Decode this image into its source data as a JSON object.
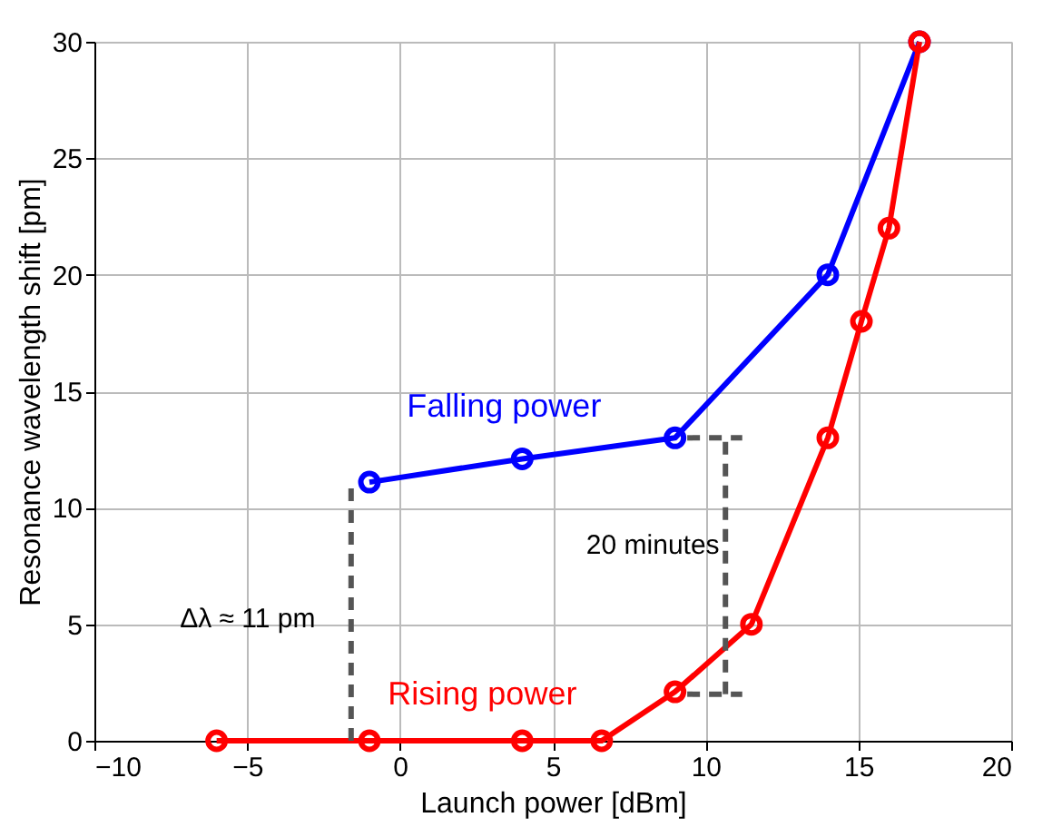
{
  "chart_data": {
    "type": "line",
    "xlabel": "Launch power  [dBm]",
    "ylabel": "Resonance wavelength shift  [pm]",
    "xlim": [
      -10,
      20
    ],
    "xticks": [
      -10,
      -5,
      0,
      5,
      10,
      15,
      20
    ],
    "ylim": [
      0,
      30
    ],
    "yticks": [
      0,
      5,
      10,
      15,
      20,
      25,
      30
    ],
    "grid": true,
    "marker": "circle",
    "line_style": "solid",
    "series": [
      {
        "name": "Falling power",
        "color": "#0000ff",
        "x": [
          -1.0,
          4.0,
          9.0,
          14.0,
          17.0
        ],
        "values": [
          11.1,
          12.1,
          13.0,
          20.0,
          30.0
        ]
      },
      {
        "name": "Rising power",
        "color": "#ff0000",
        "x": [
          -6.0,
          -1.0,
          4.0,
          6.6,
          9.0,
          11.5,
          14.0,
          15.1,
          16.0,
          17.0
        ],
        "values": [
          0,
          0,
          0,
          0,
          2.1,
          5.0,
          13.0,
          18.0,
          22.0,
          30.0
        ]
      },
      {
        "type": "line",
        "color": "#555555",
        "line_style": "dashed",
        "marker": "none",
        "x": [
          -1.6,
          -1.6
        ],
        "values": [
          0,
          11
        ]
      },
      {
        "type": "line",
        "color": "#555555",
        "line_style": "dashed",
        "marker": "none",
        "x": [
          10.65,
          10.65
        ],
        "values": [
          2,
          13
        ]
      },
      {
        "type": "line",
        "color": "#555555",
        "line_style": "dashed",
        "marker": "none",
        "x": [
          9.4,
          11.2
        ],
        "values": [
          13,
          13
        ]
      },
      {
        "type": "line",
        "color": "#555555",
        "line_style": "dashed",
        "marker": "none",
        "x": [
          9.4,
          11.2
        ],
        "values": [
          2,
          2
        ]
      }
    ],
    "annotations": [
      "Δλ ≈ 11 pm",
      "20 minutes"
    ]
  }
}
